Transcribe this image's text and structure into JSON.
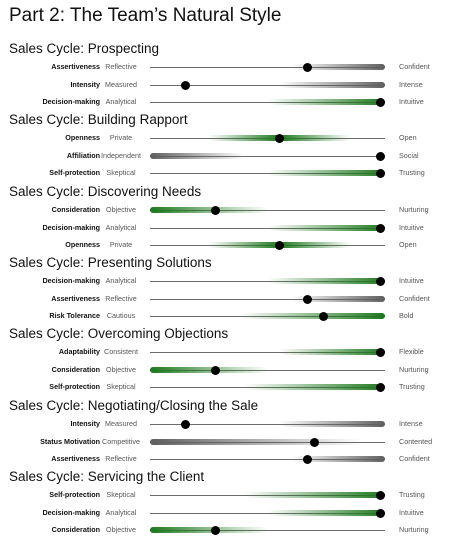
{
  "page_title": "Part 2: The Team’s Natural Style",
  "sections": [
    {
      "title": "Sales Cycle: Prospecting",
      "rows": [
        {
          "trait": "Assertiveness",
          "low": "Reflective",
          "high": "Confident",
          "value": 0.67,
          "band": "gray",
          "from": 0.6,
          "to": 1.0
        },
        {
          "trait": "Intensity",
          "low": "Measured",
          "high": "Intense",
          "value": 0.15,
          "band": "gray",
          "from": 0.55,
          "to": 1.0
        },
        {
          "trait": "Decision-making",
          "low": "Analytical",
          "high": "Intuitive",
          "value": 0.98,
          "band": "green",
          "from": 0.5,
          "to": 1.0
        }
      ]
    },
    {
      "title": "Sales Cycle: Building Rapport",
      "rows": [
        {
          "trait": "Openness",
          "low": "Private",
          "high": "Open",
          "value": 0.55,
          "band": "green",
          "from": 0.25,
          "to": 0.85
        },
        {
          "trait": "Affiliation",
          "low": "Independent",
          "high": "Social",
          "value": 0.98,
          "band": "gray",
          "from": 0.0,
          "to": 0.4
        },
        {
          "trait": "Self-protection",
          "low": "Skeptical",
          "high": "Trusting",
          "value": 0.98,
          "band": "green",
          "from": 0.5,
          "to": 1.0
        }
      ]
    },
    {
      "title": "Sales Cycle: Discovering Needs",
      "rows": [
        {
          "trait": "Consideration",
          "low": "Objective",
          "high": "Nurturing",
          "value": 0.28,
          "band": "green",
          "from": 0.0,
          "to": 0.5
        },
        {
          "trait": "Decision-making",
          "low": "Analytical",
          "high": "Intuitive",
          "value": 0.98,
          "band": "green",
          "from": 0.5,
          "to": 1.0
        },
        {
          "trait": "Openness",
          "low": "Private",
          "high": "Open",
          "value": 0.55,
          "band": "green",
          "from": 0.25,
          "to": 0.85
        }
      ]
    },
    {
      "title": "Sales Cycle: Presenting Solutions",
      "rows": [
        {
          "trait": "Decision-making",
          "low": "Analytical",
          "high": "Intuitive",
          "value": 0.98,
          "band": "green",
          "from": 0.5,
          "to": 1.0
        },
        {
          "trait": "Assertiveness",
          "low": "Reflective",
          "high": "Confident",
          "value": 0.67,
          "band": "gray",
          "from": 0.6,
          "to": 1.0
        },
        {
          "trait": "Risk Tolerance",
          "low": "Cautious",
          "high": "Bold",
          "value": 0.74,
          "band": "green",
          "from": 0.38,
          "to": 1.0
        }
      ]
    },
    {
      "title": "Sales Cycle: Overcoming Objections",
      "rows": [
        {
          "trait": "Adaptability",
          "low": "Consistent",
          "high": "Flexible",
          "value": 0.98,
          "band": "green",
          "from": 0.55,
          "to": 1.0
        },
        {
          "trait": "Consideration",
          "low": "Objective",
          "high": "Nurturing",
          "value": 0.28,
          "band": "green",
          "from": 0.0,
          "to": 0.5
        },
        {
          "trait": "Self-protection",
          "low": "Skeptical",
          "high": "Trusting",
          "value": 0.98,
          "band": "green",
          "from": 0.4,
          "to": 1.0
        }
      ]
    },
    {
      "title": "Sales Cycle: Negotiating/Closing the Sale",
      "rows": [
        {
          "trait": "Intensity",
          "low": "Measured",
          "high": "Intense",
          "value": 0.15,
          "band": "gray",
          "from": 0.55,
          "to": 1.0
        },
        {
          "trait": "Status Motivation",
          "low": "Competitive",
          "high": "Contented",
          "value": 0.7,
          "band": "gray",
          "from": 0.0,
          "to": 0.9
        },
        {
          "trait": "Assertiveness",
          "low": "Reflective",
          "high": "Confident",
          "value": 0.67,
          "band": "gray",
          "from": 0.6,
          "to": 1.0
        }
      ]
    },
    {
      "title": "Sales Cycle: Servicing the Client",
      "rows": [
        {
          "trait": "Self-protection",
          "low": "Skeptical",
          "high": "Trusting",
          "value": 0.98,
          "band": "green",
          "from": 0.4,
          "to": 1.0
        },
        {
          "trait": "Decision-making",
          "low": "Analytical",
          "high": "Intuitive",
          "value": 0.98,
          "band": "green",
          "from": 0.5,
          "to": 1.0
        },
        {
          "trait": "Consideration",
          "low": "Objective",
          "high": "Nurturing",
          "value": 0.28,
          "band": "green",
          "from": 0.0,
          "to": 0.5
        }
      ]
    }
  ]
}
